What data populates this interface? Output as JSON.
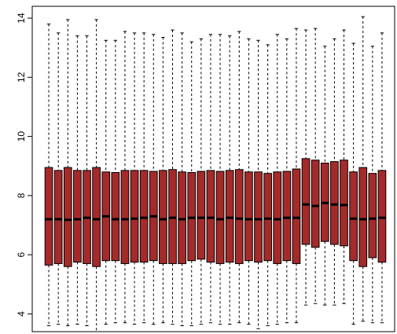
{
  "chart_data": {
    "type": "boxplot",
    "title": "",
    "xlabel": "",
    "ylabel": "",
    "ylim": [
      3.4,
      14.4
    ],
    "yticks": [
      4,
      6,
      8,
      10,
      12,
      14
    ],
    "box_color": "#A52A2A",
    "median_color": "#000000",
    "whisker_style": "dashed",
    "boxes": [
      {
        "min": 3.6,
        "q1": 5.65,
        "median": 7.2,
        "q3": 8.95,
        "max": 13.8
      },
      {
        "min": 3.65,
        "q1": 5.7,
        "median": 7.2,
        "q3": 8.85,
        "max": 13.5
      },
      {
        "min": 3.6,
        "q1": 5.6,
        "median": 7.18,
        "q3": 8.95,
        "max": 13.95
      },
      {
        "min": 3.65,
        "q1": 5.75,
        "median": 7.2,
        "q3": 8.85,
        "max": 13.4
      },
      {
        "min": 3.6,
        "q1": 5.7,
        "median": 7.25,
        "q3": 8.85,
        "max": 13.4
      },
      {
        "min": 3.4,
        "q1": 5.6,
        "median": 7.2,
        "q3": 8.95,
        "max": 13.95
      },
      {
        "min": 3.65,
        "q1": 5.8,
        "median": 7.3,
        "q3": 8.8,
        "max": 13.25
      },
      {
        "min": 3.7,
        "q1": 5.8,
        "median": 7.2,
        "q3": 8.78,
        "max": 13.25
      },
      {
        "min": 3.7,
        "q1": 5.7,
        "median": 7.2,
        "q3": 8.85,
        "max": 13.55
      },
      {
        "min": 3.65,
        "q1": 5.75,
        "median": 7.22,
        "q3": 8.85,
        "max": 13.5
      },
      {
        "min": 3.7,
        "q1": 5.75,
        "median": 7.25,
        "q3": 8.85,
        "max": 13.5
      },
      {
        "min": 3.65,
        "q1": 5.8,
        "median": 7.3,
        "q3": 8.82,
        "max": 13.45
      },
      {
        "min": 3.7,
        "q1": 5.7,
        "median": 7.2,
        "q3": 8.85,
        "max": 13.35
      },
      {
        "min": 3.65,
        "q1": 5.7,
        "median": 7.25,
        "q3": 8.88,
        "max": 13.6
      },
      {
        "min": 3.6,
        "q1": 5.7,
        "median": 7.2,
        "q3": 8.8,
        "max": 13.5
      },
      {
        "min": 3.6,
        "q1": 5.8,
        "median": 7.25,
        "q3": 8.78,
        "max": 13.2
      },
      {
        "min": 3.65,
        "q1": 5.85,
        "median": 7.25,
        "q3": 8.82,
        "max": 13.3
      },
      {
        "min": 3.7,
        "q1": 5.75,
        "median": 7.25,
        "q3": 8.85,
        "max": 13.45
      },
      {
        "min": 3.65,
        "q1": 5.7,
        "median": 7.2,
        "q3": 8.82,
        "max": 13.45
      },
      {
        "min": 3.65,
        "q1": 5.75,
        "median": 7.25,
        "q3": 8.85,
        "max": 13.4
      },
      {
        "min": 3.7,
        "q1": 5.7,
        "median": 7.22,
        "q3": 8.88,
        "max": 13.55
      },
      {
        "min": 3.65,
        "q1": 5.8,
        "median": 7.2,
        "q3": 8.8,
        "max": 13.3
      },
      {
        "min": 3.5,
        "q1": 5.75,
        "median": 7.2,
        "q3": 8.8,
        "max": 13.25
      },
      {
        "min": 3.6,
        "q1": 5.8,
        "median": 7.22,
        "q3": 8.75,
        "max": 13.1
      },
      {
        "min": 3.65,
        "q1": 5.7,
        "median": 7.2,
        "q3": 8.8,
        "max": 13.45
      },
      {
        "min": 3.7,
        "q1": 5.8,
        "median": 7.25,
        "q3": 8.82,
        "max": 13.3
      },
      {
        "min": 3.7,
        "q1": 5.7,
        "median": 7.25,
        "q3": 8.9,
        "max": 13.65
      },
      {
        "min": 4.3,
        "q1": 6.35,
        "median": 7.7,
        "q3": 9.25,
        "max": 13.6
      },
      {
        "min": 4.35,
        "q1": 6.25,
        "median": 7.65,
        "q3": 9.2,
        "max": 13.65
      },
      {
        "min": 4.3,
        "q1": 6.45,
        "median": 7.75,
        "q3": 9.1,
        "max": 13.05
      },
      {
        "min": 4.3,
        "q1": 6.35,
        "median": 7.7,
        "q3": 9.15,
        "max": 13.3
      },
      {
        "min": 4.35,
        "q1": 6.3,
        "median": 7.68,
        "q3": 9.2,
        "max": 13.6
      },
      {
        "min": 3.65,
        "q1": 5.8,
        "median": 7.22,
        "q3": 8.8,
        "max": 13.15
      },
      {
        "min": 3.75,
        "q1": 5.6,
        "median": 7.2,
        "q3": 8.95,
        "max": 14.05
      },
      {
        "min": 3.7,
        "q1": 5.9,
        "median": 7.22,
        "q3": 8.75,
        "max": 13.05
      },
      {
        "min": 3.7,
        "q1": 5.75,
        "median": 7.25,
        "q3": 8.85,
        "max": 13.5
      }
    ]
  }
}
